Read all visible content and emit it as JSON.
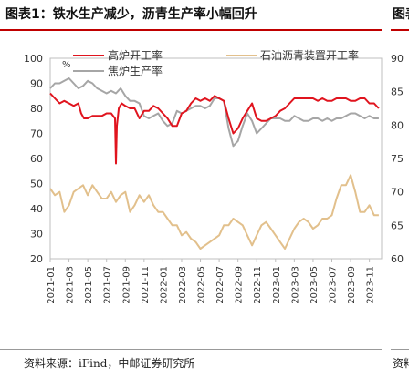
{
  "figure": {
    "title": "图表1：铁水生产减少，沥青生产率小幅回升",
    "next_title_fragment": "图表",
    "source": "资料来源：iFind，中邮证券研究所",
    "next_source_fragment": "资料"
  },
  "colors": {
    "blast_furnace": "#e0141e",
    "coke": "#a6a6a6",
    "asphalt": "#e2c08c",
    "title_rule": "#c00000"
  },
  "chart_data": {
    "type": "line",
    "unit_label": "%",
    "left_axis": {
      "ylim": [
        20,
        100
      ],
      "ticks": [
        20,
        30,
        40,
        50,
        60,
        70,
        80,
        90,
        100
      ]
    },
    "right_axis": {
      "ylim": [
        60,
        90
      ],
      "ticks": [
        60,
        65,
        70,
        75,
        80,
        85,
        90
      ]
    },
    "x_ticks": [
      "2021-01",
      "2021-03",
      "2021-05",
      "2021-07",
      "2021-09",
      "2021-11",
      "2022-01",
      "2022-03",
      "2022-05",
      "2022-07",
      "2022-09",
      "2022-11",
      "2023-01",
      "2023-03",
      "2023-05",
      "2023-07",
      "2023-09",
      "2023-11"
    ],
    "x_range_months": [
      0,
      35.3
    ],
    "legend": [
      "高炉开工率",
      "焦炉生产率",
      "石油沥青装置开工率"
    ],
    "series": [
      {
        "name": "高炉开工率",
        "axis": "left",
        "color": "#e0141e",
        "x": [
          0,
          0.5,
          1,
          1.5,
          2,
          2.5,
          3,
          3.3,
          3.6,
          4,
          4.5,
          5,
          5.5,
          6,
          6.5,
          6.9,
          7.0,
          7.1,
          7.3,
          7.6,
          8,
          8.5,
          9,
          9.5,
          10,
          10.5,
          11,
          11.5,
          12,
          12.5,
          13,
          13.5,
          14,
          14.5,
          15,
          15.5,
          16,
          16.5,
          17,
          17.5,
          18,
          18.5,
          19,
          19.5,
          20,
          20.5,
          21,
          21.5,
          22,
          22.5,
          23,
          23.5,
          24,
          24.5,
          25,
          25.5,
          26,
          26.5,
          27,
          27.5,
          28,
          28.5,
          29,
          29.5,
          30,
          30.5,
          31,
          31.5,
          32,
          32.5,
          33,
          33.5,
          34,
          34.5,
          35
        ],
        "values": [
          86,
          84,
          82,
          83,
          82,
          81,
          82,
          78,
          76,
          76,
          77,
          77,
          77,
          78,
          78,
          76,
          58,
          73,
          80,
          82,
          81,
          80,
          80,
          76,
          79,
          79,
          81,
          80,
          78,
          76,
          73,
          73,
          78,
          79,
          82,
          84,
          83,
          84,
          83,
          85,
          84,
          83,
          76,
          70,
          72,
          76,
          79,
          82,
          76,
          75,
          75,
          76,
          77,
          79,
          80,
          82,
          84,
          84,
          84,
          84,
          84,
          83,
          84,
          83,
          83,
          84,
          84,
          84,
          83,
          83,
          84,
          84,
          82,
          82,
          80
        ]
      },
      {
        "name": "焦炉生产率",
        "axis": "left",
        "color": "#a6a6a6",
        "x": [
          0,
          0.5,
          1,
          1.5,
          2,
          2.5,
          3,
          3.5,
          4,
          4.5,
          5,
          5.5,
          6,
          6.5,
          7,
          7.5,
          8,
          8.5,
          9,
          9.5,
          10,
          10.5,
          11,
          11.5,
          12,
          12.5,
          13,
          13.5,
          14,
          14.5,
          15,
          15.5,
          16,
          16.5,
          17,
          17.5,
          18,
          18.5,
          19,
          19.5,
          20,
          20.5,
          21,
          21.5,
          22,
          22.5,
          23,
          23.5,
          24,
          24.5,
          25,
          25.5,
          26,
          26.5,
          27,
          27.5,
          28,
          28.5,
          29,
          29.5,
          30,
          30.5,
          31,
          31.5,
          32,
          32.5,
          33,
          33.5,
          34,
          34.5,
          35
        ],
        "values": [
          88,
          90,
          90,
          91,
          92,
          90,
          88,
          89,
          91,
          90,
          88,
          87,
          86,
          87,
          86,
          88,
          85,
          83,
          83,
          82,
          77,
          76,
          77,
          78,
          75,
          73,
          74,
          79,
          78,
          79,
          80,
          81,
          81,
          80,
          81,
          84,
          84,
          83,
          72,
          65,
          67,
          73,
          78,
          75,
          70,
          72,
          74,
          76,
          76,
          76,
          75,
          75,
          77,
          76,
          75,
          75,
          76,
          76,
          75,
          76,
          75,
          76,
          76,
          77,
          78,
          78,
          77,
          76,
          77,
          76,
          76
        ]
      },
      {
        "name": "石油沥青装置开工率",
        "axis": "right",
        "color": "#e2c08c",
        "x": [
          0,
          0.5,
          1,
          1.5,
          2,
          2.5,
          3,
          3.5,
          4,
          4.5,
          5,
          5.5,
          6,
          6.5,
          7,
          7.5,
          8,
          8.5,
          9,
          9.5,
          10,
          10.5,
          11,
          11.5,
          12,
          12.5,
          13,
          13.5,
          14,
          14.5,
          15,
          15.5,
          16,
          16.5,
          17,
          17.5,
          18,
          18.5,
          19,
          19.5,
          20,
          20.5,
          21,
          21.5,
          22,
          22.5,
          23,
          23.5,
          24,
          24.5,
          25,
          25.5,
          26,
          26.5,
          27,
          27.5,
          28,
          28.5,
          29,
          29.5,
          30,
          30.5,
          31,
          31.5,
          32,
          32.5,
          33,
          33.5,
          34,
          34.5,
          35
        ],
        "values": [
          70.5,
          69.5,
          70,
          67,
          68,
          70,
          70.5,
          71,
          69.5,
          71,
          70,
          69,
          69,
          70,
          68.5,
          69.5,
          70,
          67,
          68,
          69.5,
          68.5,
          69.5,
          68,
          67,
          67,
          66,
          65,
          65,
          63.5,
          64,
          63,
          62.5,
          61.5,
          62,
          62.5,
          63,
          63.5,
          65,
          65,
          66,
          65.5,
          65,
          63.5,
          62,
          63.5,
          65,
          65.5,
          64.5,
          63.5,
          62.5,
          61.5,
          63,
          64.5,
          65.5,
          66,
          65.5,
          64.5,
          65,
          66,
          66,
          66.5,
          69,
          71,
          71,
          72.5,
          70,
          67,
          67,
          68,
          66.5,
          66.5
        ]
      }
    ]
  }
}
